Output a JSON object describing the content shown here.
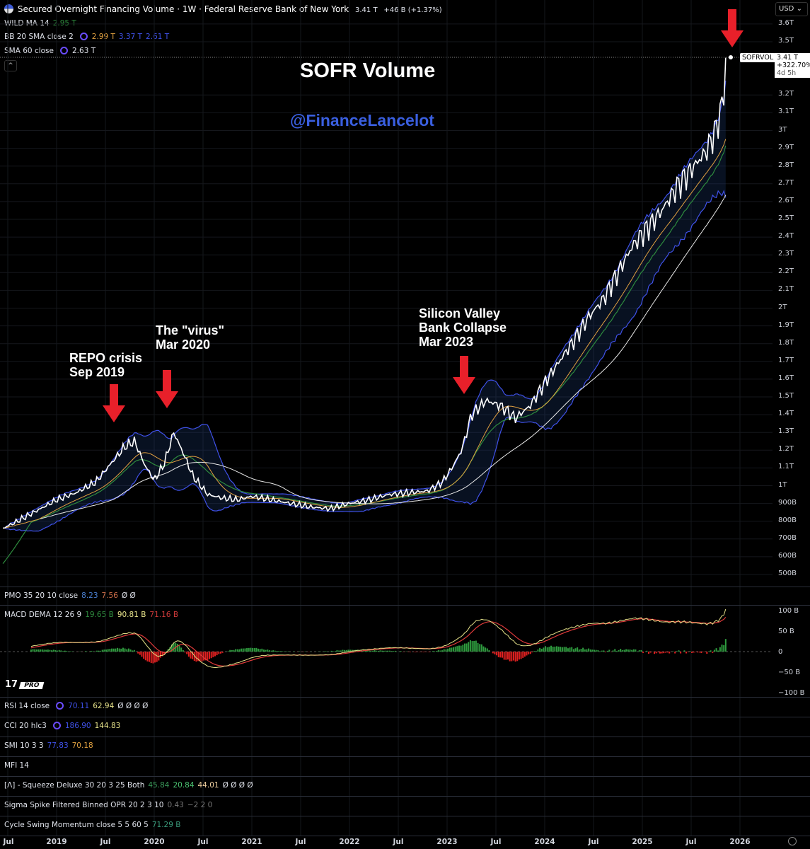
{
  "header": {
    "title": "Secured Overnight Financing Volume · 1W · Federal Reserve Bank of New York",
    "price": "3.41 T",
    "change": "+46 B (+1.37%)"
  },
  "indicators": {
    "wild": {
      "label": "WILD MA 14",
      "v1": "2.95 T"
    },
    "bb": {
      "label": "BB 20 SMA close 2",
      "v1": "2.99 T",
      "v2": "3.37 T",
      "v3": "2.61 T"
    },
    "sma": {
      "label": "SMA 60 close",
      "v1": "2.63 T"
    },
    "pmo": {
      "label": "PMO 35 20 10 close",
      "v1": "8.23",
      "v2": "7.56",
      "v3": "Ø Ø"
    },
    "macd": {
      "label": "MACD DEMA 12 26 9",
      "v1": "19.65 B",
      "v2": "90.81 B",
      "v3": "71.16 B"
    },
    "rsi": {
      "label": "RSI 14 close",
      "v1": "70.11",
      "v2": "62.94",
      "v3": "Ø Ø Ø Ø"
    },
    "cci": {
      "label": "CCI 20 hlc3",
      "v1": "186.90",
      "v2": "144.83"
    },
    "smi": {
      "label": "SMI 10 3 3",
      "v1": "77.83",
      "v2": "70.18"
    },
    "mfi": {
      "label": "MFI 14"
    },
    "squeeze": {
      "label": "[Λ] - Squeeze Deluxe 30 20 3 25 Both",
      "v1": "45.84",
      "v2": "20.84",
      "v3": "44.01",
      "v4": "Ø Ø Ø Ø"
    },
    "sigma": {
      "label": "Sigma Spike Filtered Binned OPR 20 2 3 10",
      "v1": "0.43",
      "v2": "−2 2 0"
    },
    "cycle": {
      "label": "Cycle Swing Momentum close 5 5 60 5",
      "v1": "71.29 B"
    }
  },
  "currency": "USD",
  "price_tag": {
    "symbol": "SOFRVOL",
    "value": "3.41 T",
    "pct": "+322.70%",
    "countdown": "4d 5h"
  },
  "annotations": {
    "title": "SOFR Volume",
    "handle": "@FinanceLancelot",
    "repo": [
      "REPO crisis",
      "Sep 2019"
    ],
    "virus": [
      "The \"virus\"",
      "Mar 2020"
    ],
    "svb": [
      "Silicon Valley",
      "Bank Collapse",
      "Mar 2023"
    ]
  },
  "logo": "PRO",
  "macd_axis": [
    "100 B",
    "50 B",
    "0",
    "−50 B",
    "−100 B"
  ],
  "colors": {
    "price": "#ffffff",
    "bb": "#3f51e8",
    "basis": "#e0a040",
    "wild": "#2e8b3e",
    "sma": "#e8e8e8",
    "arrow": "#e8202a",
    "handle": "#3a5fe0"
  },
  "chart_data": {
    "type": "line",
    "title": "SOFR Volume",
    "ylabel": "USD",
    "ylim": [
      0.45,
      3.65
    ],
    "y_ticks": [
      "3.6T",
      "3.5T",
      "3.2T",
      "3.1T",
      "3T",
      "2.9T",
      "2.8T",
      "2.7T",
      "2.6T",
      "2.5T",
      "2.4T",
      "2.3T",
      "2.2T",
      "2.1T",
      "2T",
      "1.9T",
      "1.8T",
      "1.7T",
      "1.6T",
      "1.5T",
      "1.4T",
      "1.3T",
      "1.2T",
      "1.1T",
      "1T",
      "900B",
      "800B",
      "700B",
      "600B",
      "500B"
    ],
    "y_tick_values": [
      3.6,
      3.5,
      3.2,
      3.1,
      3.0,
      2.9,
      2.8,
      2.7,
      2.6,
      2.5,
      2.4,
      2.3,
      2.2,
      2.1,
      2.0,
      1.9,
      1.8,
      1.7,
      1.6,
      1.5,
      1.4,
      1.3,
      1.2,
      1.1,
      1.0,
      0.9,
      0.8,
      0.7,
      0.6,
      0.5
    ],
    "x_ticks": [
      "Jul",
      "2019",
      "Jul",
      "2020",
      "Jul",
      "2021",
      "Jul",
      "2022",
      "Jul",
      "2023",
      "Jul",
      "2024",
      "Jul",
      "2025",
      "Jul",
      "2026"
    ],
    "x_tick_values": [
      2018.5,
      2019,
      2019.5,
      2020,
      2020.5,
      2021,
      2021.5,
      2022,
      2022.5,
      2023,
      2023.5,
      2024,
      2024.5,
      2025,
      2025.5,
      2026
    ],
    "series": [
      {
        "name": "SOFRVOL",
        "x": [
          2018.45,
          2018.6,
          2018.8,
          2019.0,
          2019.2,
          2019.4,
          2019.55,
          2019.7,
          2019.8,
          2019.9,
          2020.0,
          2020.1,
          2020.2,
          2020.3,
          2020.4,
          2020.55,
          2020.7,
          2020.85,
          2021.0,
          2021.2,
          2021.4,
          2021.6,
          2021.8,
          2022.0,
          2022.2,
          2022.4,
          2022.6,
          2022.8,
          2022.95,
          2023.05,
          2023.15,
          2023.25,
          2023.4,
          2023.55,
          2023.7,
          2023.85,
          2024.0,
          2024.15,
          2024.3,
          2024.45,
          2024.6,
          2024.75,
          2024.9,
          2025.05,
          2025.2,
          2025.35,
          2025.5,
          2025.65,
          2025.75,
          2025.82,
          2025.87
        ],
        "y": [
          0.76,
          0.8,
          0.86,
          0.92,
          0.96,
          1.02,
          1.12,
          1.22,
          1.25,
          1.12,
          1.03,
          1.12,
          1.3,
          1.18,
          1.05,
          0.95,
          0.93,
          0.92,
          0.94,
          0.92,
          0.9,
          0.88,
          0.87,
          0.9,
          0.92,
          0.95,
          0.96,
          0.97,
          1.02,
          1.1,
          1.2,
          1.4,
          1.48,
          1.45,
          1.38,
          1.45,
          1.58,
          1.7,
          1.82,
          1.95,
          2.05,
          2.2,
          2.35,
          2.45,
          2.55,
          2.68,
          2.78,
          2.88,
          3.0,
          3.15,
          3.41
        ]
      }
    ]
  }
}
